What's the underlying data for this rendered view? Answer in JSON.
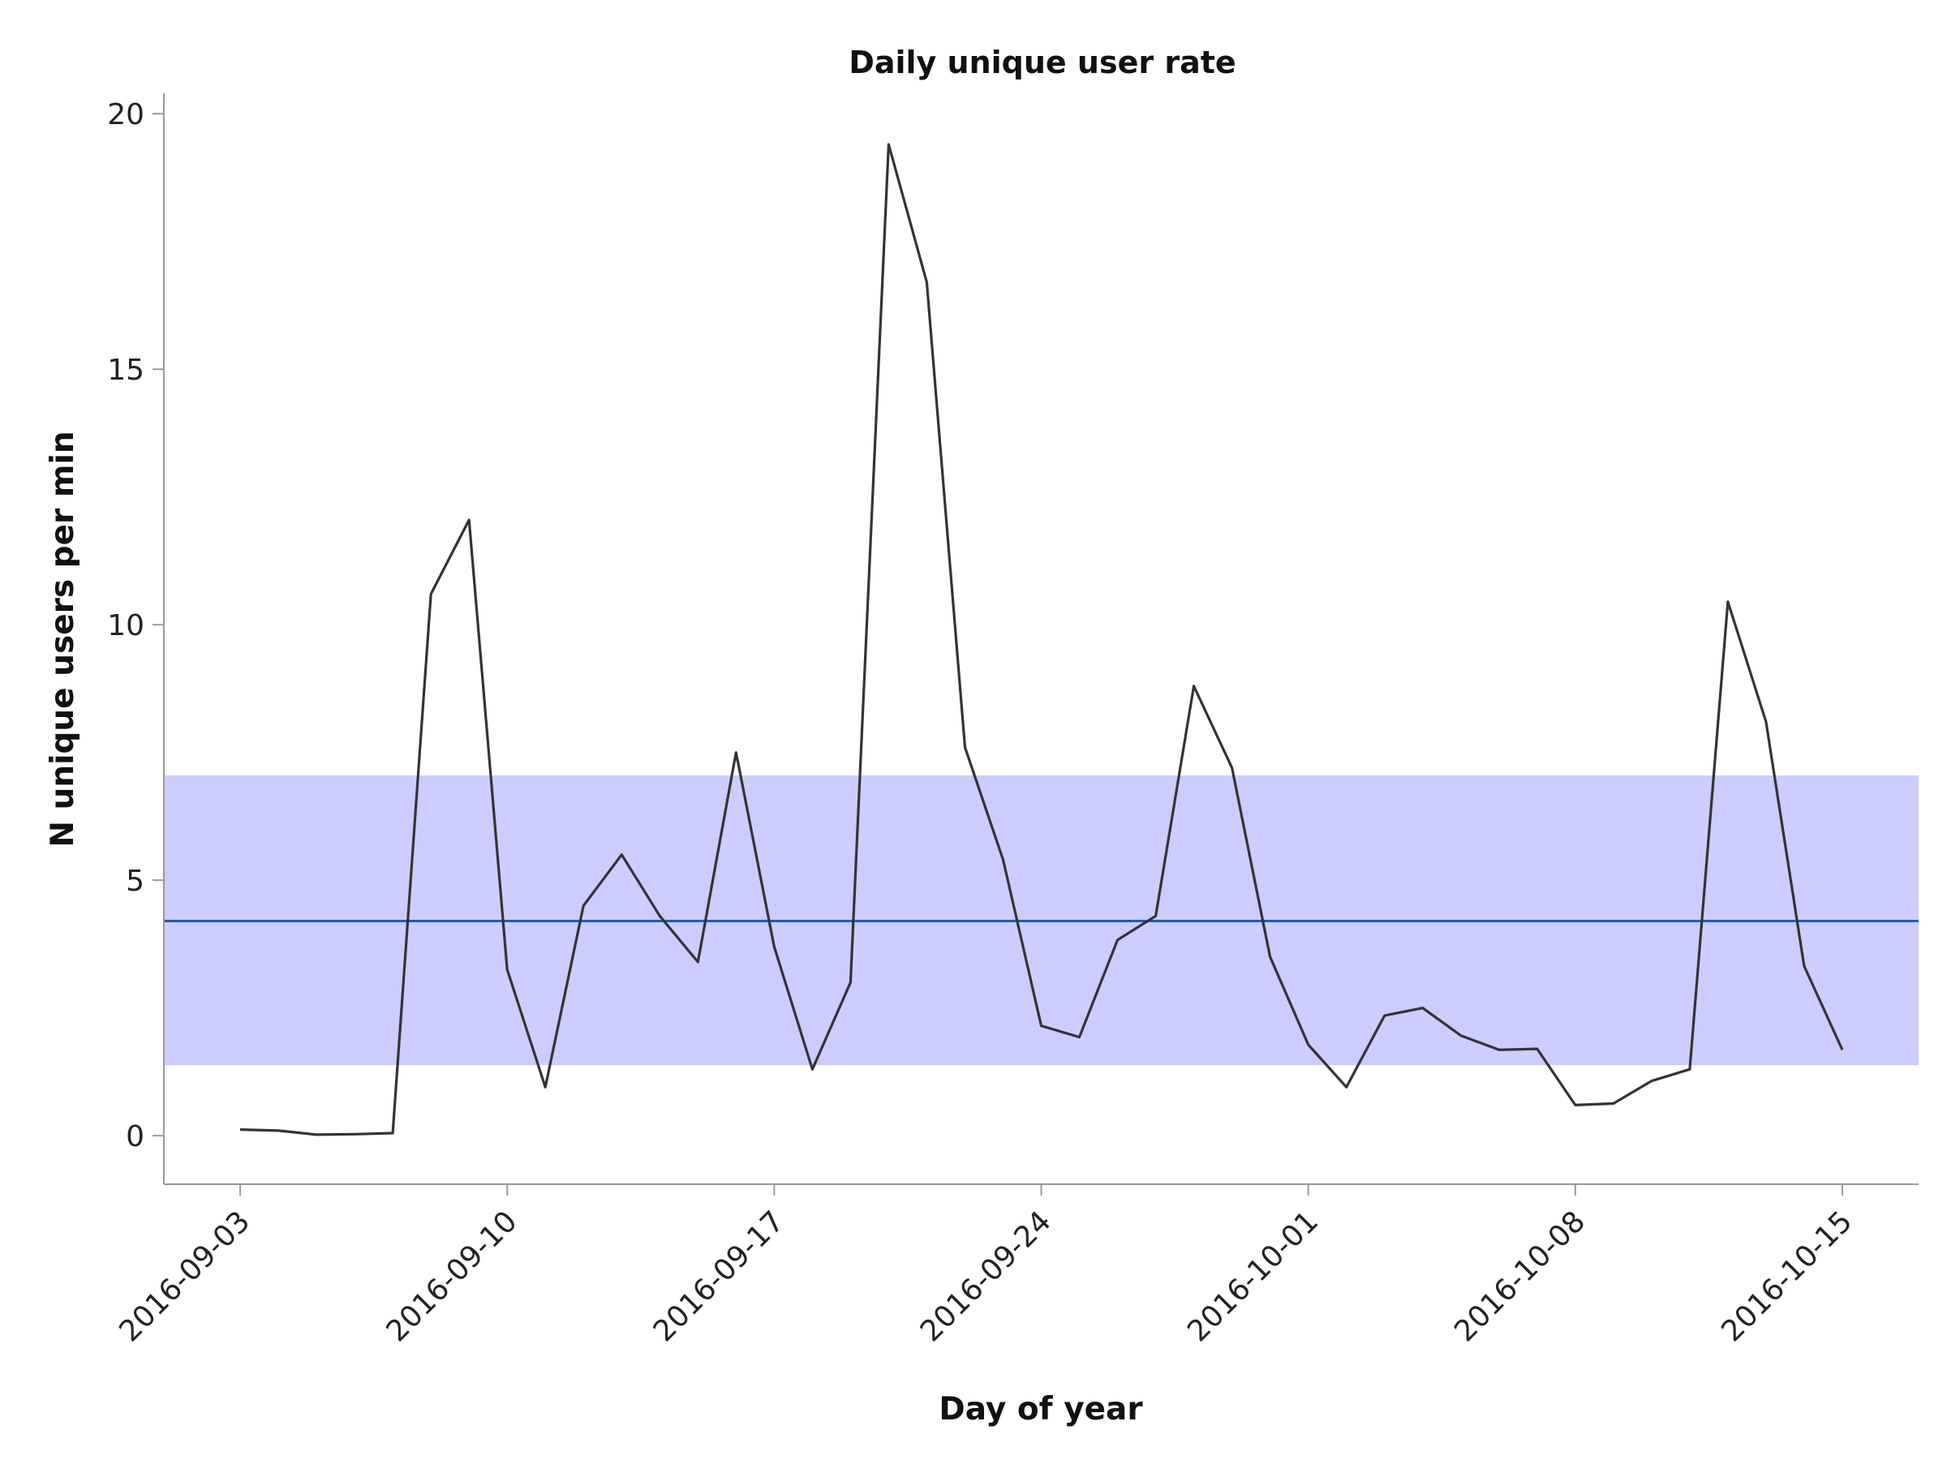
{
  "chart_data": {
    "type": "line",
    "title": "Daily unique user rate",
    "xlabel": "Day of year",
    "ylabel": "N unique users per min",
    "x_tick_labels": [
      "2016-09-03",
      "2016-09-10",
      "2016-09-17",
      "2016-09-24",
      "2016-10-01",
      "2016-10-08",
      "2016-10-15"
    ],
    "y_ticks": [
      0,
      5,
      10,
      15,
      20
    ],
    "xlim": [
      "2016-09-01",
      "2016-10-17"
    ],
    "ylim": [
      -0.95,
      20.4
    ],
    "grid": false,
    "legend": "none",
    "band": {
      "lower": 1.38,
      "upper": 7.05,
      "color": "#ccccff"
    },
    "mean_line": {
      "value": 4.2,
      "color": "#1f5cb5"
    },
    "line_color": "#333333",
    "x": [
      "2016-09-03",
      "2016-09-04",
      "2016-09-05",
      "2016-09-06",
      "2016-09-07",
      "2016-09-08",
      "2016-09-09",
      "2016-09-10",
      "2016-09-11",
      "2016-09-12",
      "2016-09-13",
      "2016-09-14",
      "2016-09-15",
      "2016-09-16",
      "2016-09-17",
      "2016-09-18",
      "2016-09-19",
      "2016-09-20",
      "2016-09-21",
      "2016-09-22",
      "2016-09-23",
      "2016-09-24",
      "2016-09-25",
      "2016-09-26",
      "2016-09-27",
      "2016-09-28",
      "2016-09-29",
      "2016-09-30",
      "2016-10-01",
      "2016-10-02",
      "2016-10-03",
      "2016-10-04",
      "2016-10-05",
      "2016-10-06",
      "2016-10-07",
      "2016-10-08",
      "2016-10-09",
      "2016-10-10",
      "2016-10-11",
      "2016-10-12",
      "2016-10-13",
      "2016-10-14",
      "2016-10-15"
    ],
    "values": [
      0.12,
      0.1,
      0.02,
      0.03,
      0.05,
      10.6,
      12.05,
      3.25,
      0.95,
      4.5,
      5.5,
      4.3,
      3.4,
      7.5,
      3.7,
      1.3,
      3.0,
      19.4,
      16.7,
      7.6,
      5.4,
      2.15,
      1.93,
      3.83,
      4.3,
      8.8,
      7.2,
      3.5,
      1.78,
      0.95,
      2.35,
      2.5,
      1.96,
      1.68,
      1.7,
      0.6,
      0.63,
      1.07,
      1.3,
      10.45,
      8.1,
      3.32,
      1.68
    ]
  }
}
